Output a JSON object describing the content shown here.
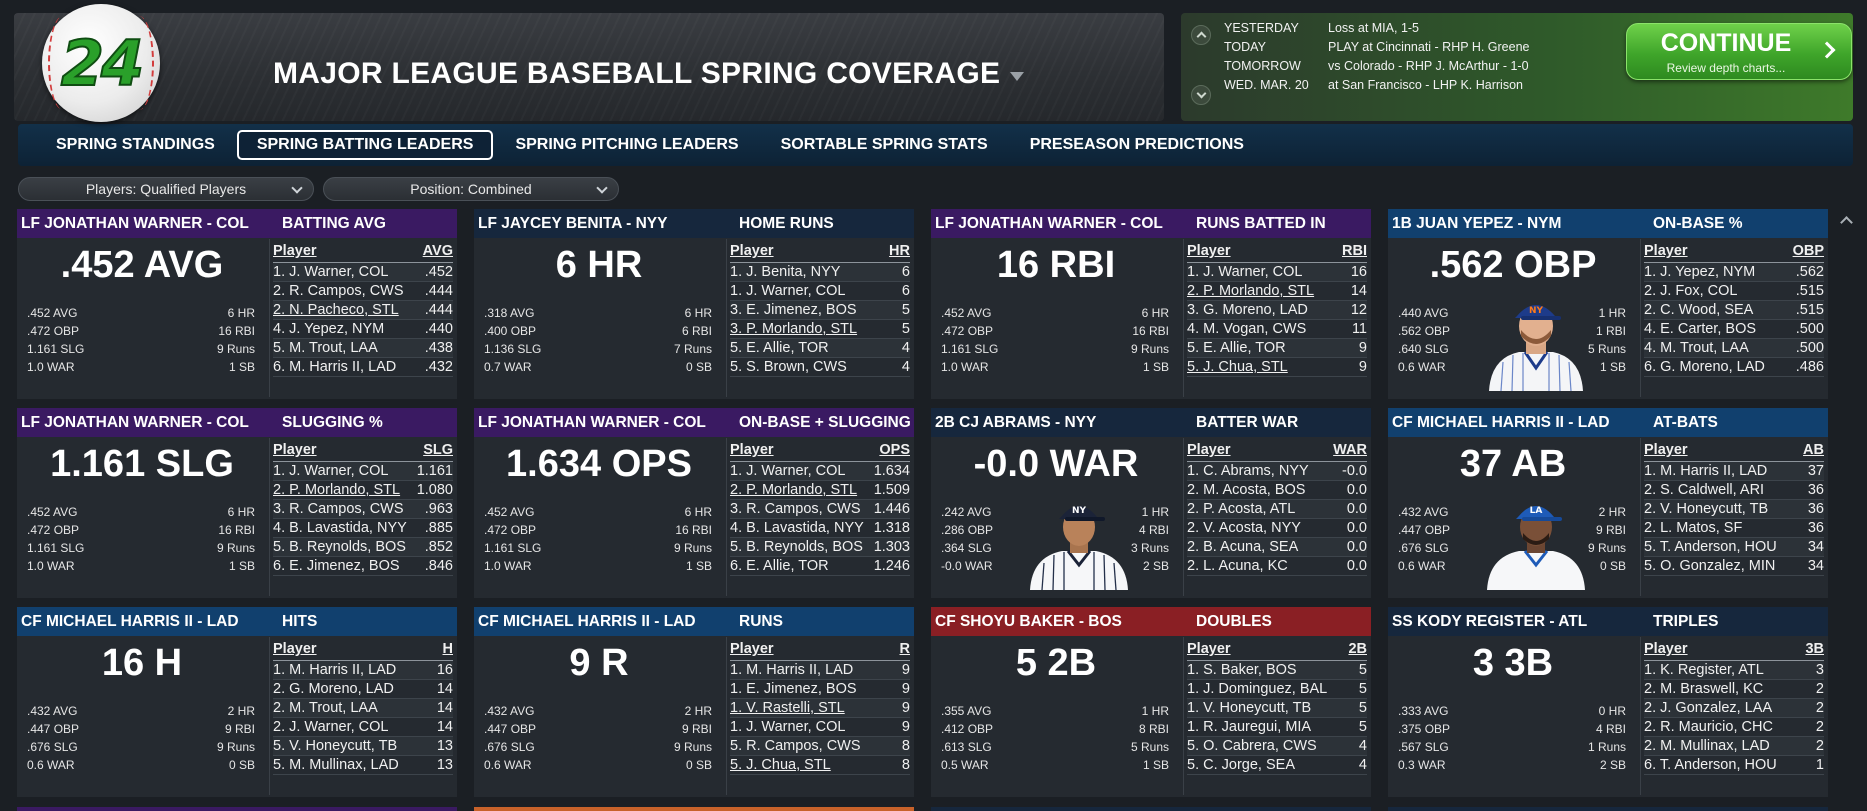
{
  "header": {
    "logo_text": "24",
    "title": "MAJOR LEAGUE BASEBALL SPRING COVERAGE"
  },
  "schedule": [
    {
      "day": "YESTERDAY",
      "text": "Loss at MIA, 1-5"
    },
    {
      "day": "TODAY",
      "text": "PLAY at Cincinnati - RHP H. Greene"
    },
    {
      "day": "TOMORROW",
      "text": "vs Colorado - RHP J. McArthur - 1-0"
    },
    {
      "day": "WED. MAR. 20",
      "text": "at San Francisco - LHP K. Harrison"
    }
  ],
  "continue": {
    "label": "CONTINUE",
    "sub": "Review depth charts..."
  },
  "tabs": [
    {
      "label": "SPRING STANDINGS",
      "active": false
    },
    {
      "label": "SPRING BATTING LEADERS",
      "active": true
    },
    {
      "label": "SPRING PITCHING LEADERS",
      "active": false
    },
    {
      "label": "SORTABLE SPRING STATS",
      "active": false
    },
    {
      "label": "PRESEASON PREDICTIONS",
      "active": false
    }
  ],
  "filters": {
    "players": "Players: Qualified Players",
    "position": "Position: Combined"
  },
  "colors": {
    "purple": "#3a1a62",
    "navy": "#16273d",
    "blue": "#11406e",
    "red": "#8a1f24",
    "orange": "#c8622a"
  },
  "cards": [
    {
      "player": "LF JONATHAN WARNER - COL",
      "category": "BATTING AVG",
      "big": ".452 AVG",
      "color": "purple",
      "portrait": "none",
      "lines": [
        [
          ".452 AVG",
          "6 HR"
        ],
        [
          ".472 OBP",
          "16 RBI"
        ],
        [
          "1.161 SLG",
          "9 Runs"
        ],
        [
          "1.0 WAR",
          "1 SB"
        ]
      ],
      "col_player": "Player",
      "col_stat": "AVG",
      "rows": [
        [
          "1. J. Warner, COL",
          ".452",
          false
        ],
        [
          "2. R. Campos, CWS",
          ".444",
          false
        ],
        [
          "2. N. Pacheco, STL",
          ".444",
          true
        ],
        [
          "4. J. Yepez, NYM",
          ".440",
          false
        ],
        [
          "5. M. Trout, LAA",
          ".438",
          false
        ],
        [
          "6. M. Harris II, LAD",
          ".432",
          false
        ]
      ]
    },
    {
      "player": "LF JAYCEY BENITA - NYY",
      "category": "HOME RUNS",
      "big": "6 HR",
      "color": "navy",
      "portrait": "none",
      "lines": [
        [
          ".318 AVG",
          "6 HR"
        ],
        [
          ".400 OBP",
          "6 RBI"
        ],
        [
          "1.136 SLG",
          "7 Runs"
        ],
        [
          "0.7 WAR",
          "0 SB"
        ]
      ],
      "col_player": "Player",
      "col_stat": "HR",
      "rows": [
        [
          "1. J. Benita, NYY",
          "6",
          false
        ],
        [
          "1. J. Warner, COL",
          "6",
          false
        ],
        [
          "3. E. Jimenez, BOS",
          "5",
          false
        ],
        [
          "3. P. Morlando, STL",
          "5",
          true
        ],
        [
          "5. E. Allie, TOR",
          "4",
          false
        ],
        [
          "5. S. Brown, CWS",
          "4",
          false
        ]
      ]
    },
    {
      "player": "LF JONATHAN WARNER - COL",
      "category": "RUNS BATTED IN",
      "big": "16 RBI",
      "color": "purple",
      "portrait": "none",
      "lines": [
        [
          ".452 AVG",
          "6 HR"
        ],
        [
          ".472 OBP",
          "16 RBI"
        ],
        [
          "1.161 SLG",
          "9 Runs"
        ],
        [
          "1.0 WAR",
          "1 SB"
        ]
      ],
      "col_player": "Player",
      "col_stat": "RBI",
      "rows": [
        [
          "1. J. Warner, COL",
          "16",
          false
        ],
        [
          "2. P. Morlando, STL",
          "14",
          true
        ],
        [
          "3. G. Moreno, LAD",
          "12",
          false
        ],
        [
          "4. M. Vogan, CWS",
          "11",
          false
        ],
        [
          "5. E. Allie, TOR",
          "9",
          false
        ],
        [
          "5. J. Chua, STL",
          "9",
          true
        ]
      ]
    },
    {
      "player": "1B JUAN YEPEZ - NYM",
      "category": "ON-BASE %",
      "big": ".562 OBP",
      "color": "blue",
      "portrait": "mets",
      "lines": [
        [
          ".440 AVG",
          "1 HR"
        ],
        [
          ".562 OBP",
          "1 RBI"
        ],
        [
          ".640 SLG",
          "5 Runs"
        ],
        [
          "0.6 WAR",
          "1 SB"
        ]
      ],
      "col_player": "Player",
      "col_stat": "OBP",
      "rows": [
        [
          "1. J. Yepez, NYM",
          ".562",
          false
        ],
        [
          "2. J. Fox, COL",
          ".515",
          false
        ],
        [
          "2. C. Wood, SEA",
          ".515",
          false
        ],
        [
          "4. E. Carter, BOS",
          ".500",
          false
        ],
        [
          "4. M. Trout, LAA",
          ".500",
          false
        ],
        [
          "6. G. Moreno, LAD",
          ".486",
          false
        ]
      ]
    },
    {
      "player": "LF JONATHAN WARNER - COL",
      "category": "SLUGGING %",
      "big": "1.161 SLG",
      "color": "purple",
      "portrait": "none",
      "lines": [
        [
          ".452 AVG",
          "6 HR"
        ],
        [
          ".472 OBP",
          "16 RBI"
        ],
        [
          "1.161 SLG",
          "9 Runs"
        ],
        [
          "1.0 WAR",
          "1 SB"
        ]
      ],
      "col_player": "Player",
      "col_stat": "SLG",
      "rows": [
        [
          "1. J. Warner, COL",
          "1.161",
          false
        ],
        [
          "2. P. Morlando, STL",
          "1.080",
          true
        ],
        [
          "3. R. Campos, CWS",
          ".963",
          false
        ],
        [
          "4. B. Lavastida, NYY",
          ".885",
          false
        ],
        [
          "5. B. Reynolds, BOS",
          ".852",
          false
        ],
        [
          "6. E. Jimenez, BOS",
          ".846",
          false
        ]
      ]
    },
    {
      "player": "LF JONATHAN WARNER - COL",
      "category": "ON-BASE + SLUGGING",
      "big": "1.634 OPS",
      "color": "purple",
      "portrait": "none",
      "lines": [
        [
          ".452 AVG",
          "6 HR"
        ],
        [
          ".472 OBP",
          "16 RBI"
        ],
        [
          "1.161 SLG",
          "9 Runs"
        ],
        [
          "1.0 WAR",
          "1 SB"
        ]
      ],
      "col_player": "Player",
      "col_stat": "OPS",
      "rows": [
        [
          "1. J. Warner, COL",
          "1.634",
          false
        ],
        [
          "2. P. Morlando, STL",
          "1.509",
          true
        ],
        [
          "3. R. Campos, CWS",
          "1.446",
          false
        ],
        [
          "4. B. Lavastida, NYY",
          "1.318",
          false
        ],
        [
          "5. B. Reynolds, BOS",
          "1.303",
          false
        ],
        [
          "6. E. Allie, TOR",
          "1.246",
          false
        ]
      ]
    },
    {
      "player": "2B CJ ABRAMS - NYY",
      "category": "BATTER WAR",
      "big": "-0.0 WAR",
      "color": "navy",
      "portrait": "yankees",
      "lines": [
        [
          ".242 AVG",
          "1 HR"
        ],
        [
          ".286 OBP",
          "4 RBI"
        ],
        [
          ".364 SLG",
          "3 Runs"
        ],
        [
          "-0.0 WAR",
          "2 SB"
        ]
      ],
      "col_player": "Player",
      "col_stat": "WAR",
      "rows": [
        [
          "1. C. Abrams, NYY",
          "-0.0",
          false
        ],
        [
          "2. M. Acosta, BOS",
          "0.0",
          false
        ],
        [
          "2. P. Acosta, ATL",
          "0.0",
          false
        ],
        [
          "2. V. Acosta, NYY",
          "0.0",
          false
        ],
        [
          "2. B. Acuna, SEA",
          "0.0",
          false
        ],
        [
          "2. L. Acuna, KC",
          "0.0",
          false
        ]
      ]
    },
    {
      "player": "CF MICHAEL HARRIS II - LAD",
      "category": "AT-BATS",
      "big": "37 AB",
      "color": "blue",
      "portrait": "dodgers",
      "lines": [
        [
          ".432 AVG",
          "2 HR"
        ],
        [
          ".447 OBP",
          "9 RBI"
        ],
        [
          ".676 SLG",
          "9 Runs"
        ],
        [
          "0.6 WAR",
          "0 SB"
        ]
      ],
      "col_player": "Player",
      "col_stat": "AB",
      "rows": [
        [
          "1. M. Harris II, LAD",
          "37",
          false
        ],
        [
          "2. S. Caldwell, ARI",
          "36",
          false
        ],
        [
          "2. V. Honeycutt, TB",
          "36",
          false
        ],
        [
          "2. L. Matos, SF",
          "36",
          false
        ],
        [
          "5. T. Anderson, HOU",
          "34",
          false
        ],
        [
          "5. O. Gonzalez, MIN",
          "34",
          false
        ]
      ]
    },
    {
      "player": "CF MICHAEL HARRIS II - LAD",
      "category": "HITS",
      "big": "16 H",
      "color": "blue",
      "portrait": "none",
      "lines": [
        [
          ".432 AVG",
          "2 HR"
        ],
        [
          ".447 OBP",
          "9 RBI"
        ],
        [
          ".676 SLG",
          "9 Runs"
        ],
        [
          "0.6 WAR",
          "0 SB"
        ]
      ],
      "col_player": "Player",
      "col_stat": "H",
      "rows": [
        [
          "1. M. Harris II, LAD",
          "16",
          false
        ],
        [
          "2. G. Moreno, LAD",
          "14",
          false
        ],
        [
          "2. M. Trout, LAA",
          "14",
          false
        ],
        [
          "2. J. Warner, COL",
          "14",
          false
        ],
        [
          "5. V. Honeycutt, TB",
          "13",
          false
        ],
        [
          "5. M. Mullinax, LAD",
          "13",
          false
        ]
      ]
    },
    {
      "player": "CF MICHAEL HARRIS II - LAD",
      "category": "RUNS",
      "big": "9 R",
      "color": "blue",
      "portrait": "none",
      "lines": [
        [
          ".432 AVG",
          "2 HR"
        ],
        [
          ".447 OBP",
          "9 RBI"
        ],
        [
          ".676 SLG",
          "9 Runs"
        ],
        [
          "0.6 WAR",
          "0 SB"
        ]
      ],
      "col_player": "Player",
      "col_stat": "R",
      "rows": [
        [
          "1. M. Harris II, LAD",
          "9",
          false
        ],
        [
          "1. E. Jimenez, BOS",
          "9",
          false
        ],
        [
          "1. V. Rastelli, STL",
          "9",
          true
        ],
        [
          "1. J. Warner, COL",
          "9",
          false
        ],
        [
          "5. R. Campos, CWS",
          "8",
          false
        ],
        [
          "5. J. Chua, STL",
          "8",
          true
        ]
      ]
    },
    {
      "player": "CF SHOYU BAKER - BOS",
      "category": "DOUBLES",
      "big": "5 2B",
      "color": "red",
      "portrait": "none",
      "lines": [
        [
          ".355 AVG",
          "1 HR"
        ],
        [
          ".412 OBP",
          "8 RBI"
        ],
        [
          ".613 SLG",
          "5 Runs"
        ],
        [
          "0.5 WAR",
          "1 SB"
        ]
      ],
      "col_player": "Player",
      "col_stat": "2B",
      "rows": [
        [
          "1. S. Baker, BOS",
          "5",
          false
        ],
        [
          "1. J. Dominguez, BAL",
          "5",
          false
        ],
        [
          "1. V. Honeycutt, TB",
          "5",
          false
        ],
        [
          "1. R. Jauregui, MIA",
          "5",
          false
        ],
        [
          "5. O. Cabrera, CWS",
          "4",
          false
        ],
        [
          "5. C. Jorge, SEA",
          "4",
          false
        ]
      ]
    },
    {
      "player": "SS KODY REGISTER - ATL",
      "category": "TRIPLES",
      "big": "3 3B",
      "color": "navy",
      "portrait": "none",
      "lines": [
        [
          ".333 AVG",
          "0 HR"
        ],
        [
          ".375 OBP",
          "4 RBI"
        ],
        [
          ".567 SLG",
          "1 Runs"
        ],
        [
          "0.3 WAR",
          "2 SB"
        ]
      ],
      "col_player": "Player",
      "col_stat": "3B",
      "rows": [
        [
          "1. K. Register, ATL",
          "3",
          false
        ],
        [
          "2. M. Braswell, KC",
          "2",
          false
        ],
        [
          "2. J. Gonzalez, LAA",
          "2",
          false
        ],
        [
          "2. R. Mauricio, CHC",
          "2",
          false
        ],
        [
          "2. M. Mullinax, LAD",
          "2",
          false
        ],
        [
          "6. T. Anderson, HOU",
          "1",
          false
        ]
      ]
    }
  ]
}
